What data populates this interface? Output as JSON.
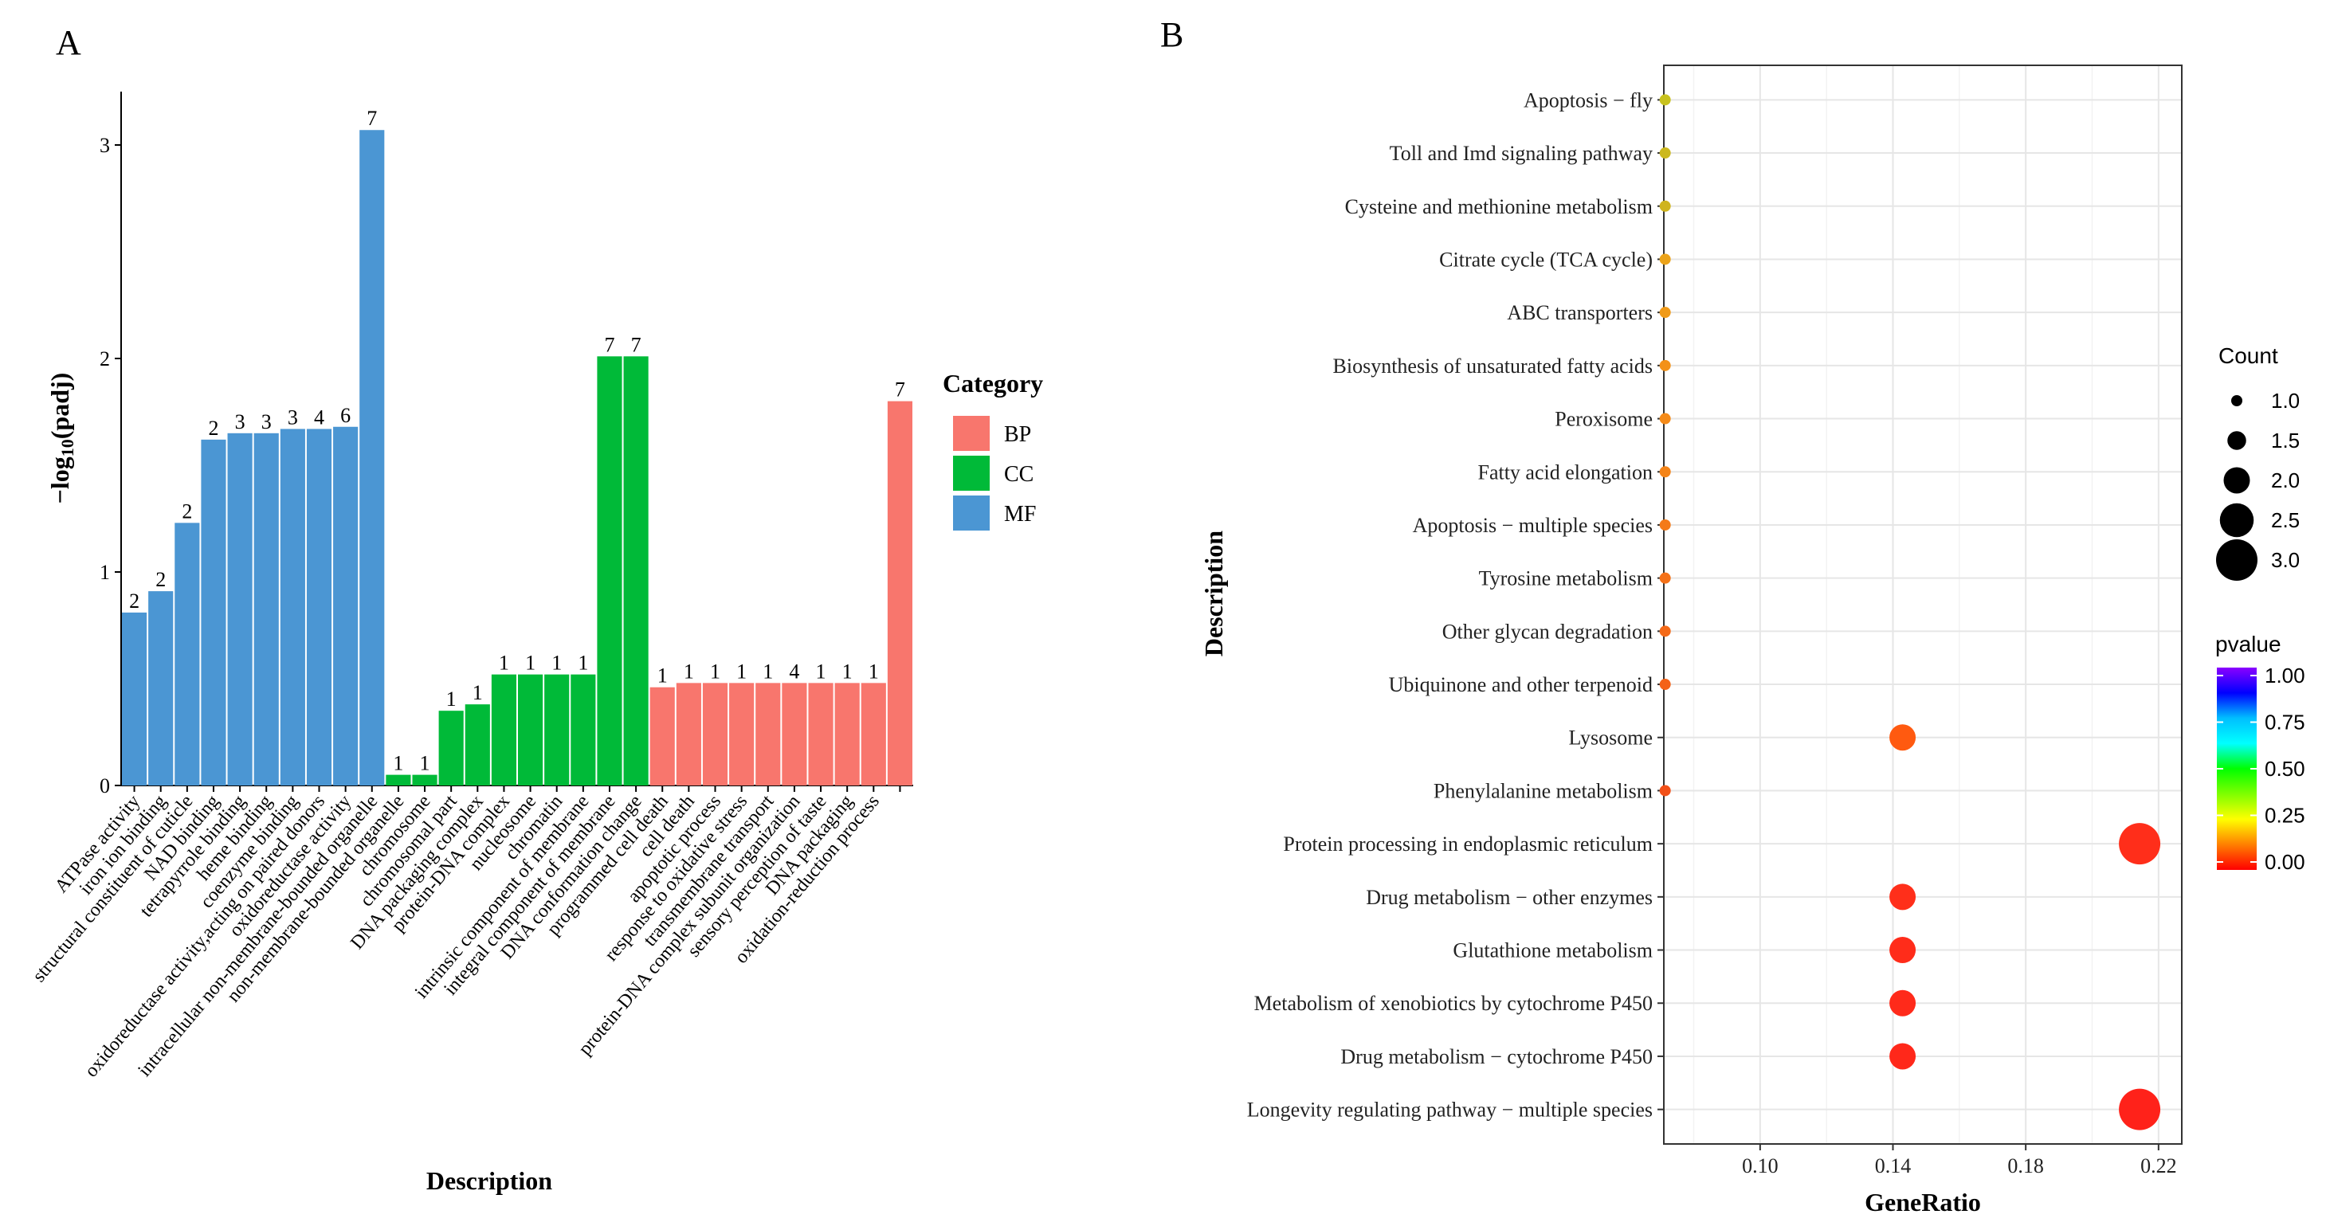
{
  "panel_a_label": "A",
  "panel_b_label": "B",
  "chart_data": [
    {
      "type": "bar",
      "panel": "A",
      "xlabel": "Description",
      "ylabel_prefix": "−log",
      "ylabel_sub": "10",
      "ylabel_suffix": "(padj)",
      "ylim": [
        0,
        3.25
      ],
      "yticks": [
        "0",
        "1",
        "2",
        "3"
      ],
      "ytick_values": [
        0,
        1,
        2,
        3
      ],
      "legend_title": "Category",
      "legend": [
        {
          "name": "BP",
          "color": "#F8766D"
        },
        {
          "name": "CC",
          "color": "#00BA38"
        },
        {
          "name": "MF",
          "color": "#4B96D3"
        }
      ],
      "bars": [
        {
          "label": "ATPase activity",
          "value": 0.81,
          "count": "2",
          "category": "MF"
        },
        {
          "label": "iron ion binding",
          "value": 0.91,
          "count": "2",
          "category": "MF"
        },
        {
          "label": "structural constituent of cuticle",
          "value": 1.23,
          "count": "2",
          "category": "MF"
        },
        {
          "label": "NAD binding",
          "value": 1.62,
          "count": "2",
          "category": "MF"
        },
        {
          "label": "tetrapyrrole binding",
          "value": 1.65,
          "count": "3",
          "category": "MF"
        },
        {
          "label": "heme binding",
          "value": 1.65,
          "count": "3",
          "category": "MF"
        },
        {
          "label": "coenzyme binding",
          "value": 1.67,
          "count": "3",
          "category": "MF"
        },
        {
          "label": "oxidoreductase activity,acting on paired donors",
          "value": 1.67,
          "count": "4",
          "category": "MF"
        },
        {
          "label": "oxidoreductase activity",
          "value": 1.68,
          "count": "6",
          "category": "MF"
        },
        {
          "label": "intracellular non-membrane-bounded organelle",
          "value": 3.07,
          "count": "7",
          "category": "MF"
        },
        {
          "label": "non-membrane-bounded organelle",
          "value": 0.05,
          "count": "1",
          "category": "CC"
        },
        {
          "label": "chromosome",
          "value": 0.05,
          "count": "1",
          "category": "CC"
        },
        {
          "label": "chromosomal part",
          "value": 0.35,
          "count": "1",
          "category": "CC"
        },
        {
          "label": "DNA packaging complex",
          "value": 0.38,
          "count": "1",
          "category": "CC"
        },
        {
          "label": "protein-DNA complex",
          "value": 0.52,
          "count": "1",
          "category": "CC"
        },
        {
          "label": "nucleosome",
          "value": 0.52,
          "count": "1",
          "category": "CC"
        },
        {
          "label": "chromatin",
          "value": 0.52,
          "count": "1",
          "category": "CC"
        },
        {
          "label": "intrinsic component of membrane",
          "value": 0.52,
          "count": "1",
          "category": "CC"
        },
        {
          "label": "integral component of membrane",
          "value": 2.01,
          "count": "7",
          "category": "CC"
        },
        {
          "label": "DNA conformation change",
          "value": 2.01,
          "count": "7",
          "category": "CC"
        },
        {
          "label": "programmed cell death",
          "value": 0.46,
          "count": "1",
          "category": "BP"
        },
        {
          "label": "cell death",
          "value": 0.48,
          "count": "1",
          "category": "BP"
        },
        {
          "label": "apoptotic process",
          "value": 0.48,
          "count": "1",
          "category": "BP"
        },
        {
          "label": "response to oxidative stress",
          "value": 0.48,
          "count": "1",
          "category": "BP"
        },
        {
          "label": "transmembrane transport",
          "value": 0.48,
          "count": "1",
          "category": "BP"
        },
        {
          "label": "protein-DNA complex subunit organization",
          "value": 0.48,
          "count": "4",
          "category": "BP"
        },
        {
          "label": "sensory perception of taste",
          "value": 0.48,
          "count": "1",
          "category": "BP"
        },
        {
          "label": "DNA packaging",
          "value": 0.48,
          "count": "1",
          "category": "BP"
        },
        {
          "label": "oxidation-reduction process",
          "value": 0.48,
          "count": "1",
          "category": "BP"
        },
        {
          "label": "",
          "value": 1.8,
          "count": "7",
          "category": "BP"
        }
      ]
    },
    {
      "type": "scatter",
      "panel": "B",
      "xlabel": "GeneRatio",
      "ylabel": "Description",
      "xlim": [
        0.071,
        0.227
      ],
      "xticks": [
        "0.10",
        "0.14",
        "0.18",
        "0.22"
      ],
      "xtick_values": [
        0.1,
        0.14,
        0.18,
        0.22
      ],
      "size_legend_title": "Count",
      "size_legend": [
        {
          "label": "1.0",
          "count": 1.0
        },
        {
          "label": "1.5",
          "count": 1.5
        },
        {
          "label": "2.0",
          "count": 2.0
        },
        {
          "label": "2.5",
          "count": 2.5
        },
        {
          "label": "3.0",
          "count": 3.0
        }
      ],
      "color_legend_title": "pvalue",
      "color_legend_ticks": [
        "1.00",
        "0.75",
        "0.50",
        "0.25",
        "0.00"
      ],
      "color_legend_values": [
        1.0,
        0.75,
        0.5,
        0.25,
        0.0
      ],
      "color_scale": [
        "#FF0000",
        "#FF7F00",
        "#FFFF00",
        "#7FFF00",
        "#00FF00",
        "#00FFFF",
        "#00BFFF",
        "#0000FF",
        "#8B00FF"
      ],
      "points": [
        {
          "term": "Apoptosis − fly",
          "ratio": 0.0714,
          "count": 1,
          "color": "#C8C21E"
        },
        {
          "term": "Toll and Imd signaling pathway",
          "ratio": 0.0714,
          "count": 1,
          "color": "#CCB81E"
        },
        {
          "term": "Cysteine and methionine metabolism",
          "ratio": 0.0714,
          "count": 1,
          "color": "#CFB41D"
        },
        {
          "term": "Citrate cycle (TCA cycle)",
          "ratio": 0.0714,
          "count": 1,
          "color": "#EBA31A"
        },
        {
          "term": "ABC transporters",
          "ratio": 0.0714,
          "count": 1,
          "color": "#F09A18"
        },
        {
          "term": "Biosynthesis of unsaturated fatty acids",
          "ratio": 0.0714,
          "count": 1,
          "color": "#F39118"
        },
        {
          "term": "Peroxisome",
          "ratio": 0.0714,
          "count": 1,
          "color": "#F48A18"
        },
        {
          "term": "Fatty acid elongation",
          "ratio": 0.0714,
          "count": 1,
          "color": "#F48418"
        },
        {
          "term": "Apoptosis − multiple species",
          "ratio": 0.0714,
          "count": 1,
          "color": "#F47A18"
        },
        {
          "term": "Tyrosine metabolism",
          "ratio": 0.0714,
          "count": 1,
          "color": "#F47118"
        },
        {
          "term": "Other glycan degradation",
          "ratio": 0.0714,
          "count": 1,
          "color": "#F46A18"
        },
        {
          "term": "Ubiquinone and other terpenoid",
          "ratio": 0.0714,
          "count": 1,
          "color": "#F46218"
        },
        {
          "term": "Lysosome",
          "ratio": 0.1429,
          "count": 2,
          "color": "#FF5A10"
        },
        {
          "term": "Phenylalanine metabolism",
          "ratio": 0.0714,
          "count": 1,
          "color": "#F25018"
        },
        {
          "term": "Protein processing in endoplasmic reticulum",
          "ratio": 0.2143,
          "count": 3,
          "color": "#FF2E1A"
        },
        {
          "term": "Drug metabolism − other enzymes",
          "ratio": 0.1429,
          "count": 2,
          "color": "#FF2F1A"
        },
        {
          "term": "Glutathione metabolism",
          "ratio": 0.1429,
          "count": 2,
          "color": "#FF2C1A"
        },
        {
          "term": "Metabolism of xenobiotics by cytochrome P450",
          "ratio": 0.1429,
          "count": 2,
          "color": "#FF2A1A"
        },
        {
          "term": "Drug metabolism − cytochrome P450",
          "ratio": 0.1429,
          "count": 2,
          "color": "#FF281A"
        },
        {
          "term": "Longevity regulating pathway − multiple species",
          "ratio": 0.2143,
          "count": 3,
          "color": "#FF221A"
        }
      ]
    }
  ]
}
